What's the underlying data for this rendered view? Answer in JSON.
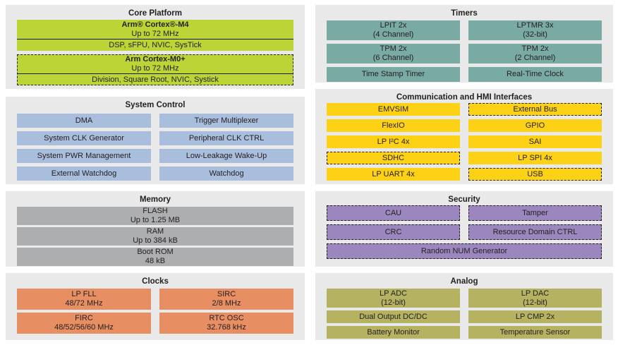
{
  "colors": {
    "panel_bg": "#e9e9ea",
    "green": "#bcd435",
    "blue": "#a9bedd",
    "gray": "#adaeb0",
    "orange": "#e78e63",
    "teal": "#79aaa4",
    "yellow": "#fdd116",
    "purple": "#9b87bd",
    "olive": "#b5b261",
    "text": "#231f20"
  },
  "sections": {
    "core": {
      "title": "Core Platform",
      "blocks": [
        {
          "line1": "Arm® Cortex®-M4",
          "line2": "Up to 72 MHz",
          "features": "DSP, sFPU, NVIC, SysTick"
        },
        {
          "line1": "Arm Cortex-M0+",
          "line2": "Up to 72 MHz",
          "features": "Division, Square Root, NVIC, Systick"
        }
      ]
    },
    "system_control": {
      "title": "System Control",
      "cells": [
        "DMA",
        "Trigger Multiplexer",
        "System CLK Generator",
        "Peripheral CLK CTRL",
        "System PWR Management",
        "Low-Leakage Wake-Up",
        "External Watchdog",
        "Watchdog"
      ]
    },
    "memory": {
      "title": "Memory",
      "cells": [
        {
          "line1": "FLASH",
          "line2": "Up to 1.25 MB"
        },
        {
          "line1": "RAM",
          "line2": "Up to 384 kB"
        },
        {
          "line1": "Boot ROM",
          "line2": "48 kB"
        }
      ]
    },
    "clocks": {
      "title": "Clocks",
      "cells": [
        {
          "line1": "LP FLL",
          "line2": "48/72 MHz"
        },
        {
          "line1": "SIRC",
          "line2": "2/8 MHz"
        },
        {
          "line1": "FIRC",
          "line2": "48/52/56/60 MHz"
        },
        {
          "line1": "RTC OSC",
          "line2": "32.768 kHz"
        }
      ]
    },
    "timers": {
      "title": "Timers",
      "cells": [
        {
          "line1": "LPIT 2x",
          "line2": "(4 Channel)"
        },
        {
          "line1": "LPTMR 3x",
          "line2": "(32-bit)"
        },
        {
          "line1": "TPM 2x",
          "line2": "(6 Channel)"
        },
        {
          "line1": "TPM 2x",
          "line2": "(2 Channel)"
        },
        {
          "line1": "Time Stamp Timer"
        },
        {
          "line1": "Real-Time Clock"
        }
      ]
    },
    "comm": {
      "title": "Communication and HMI Interfaces",
      "cells": [
        "EMVSIM",
        "External Bus",
        "FlexIO",
        "GPIO",
        "LP I²C 4x",
        "SAI",
        "SDHC",
        "LP SPI 4x",
        "LP UART 4x",
        "USB"
      ]
    },
    "security": {
      "title": "Security",
      "cells": [
        "CAU",
        "Tamper",
        "CRC",
        "Resource Domain CTRL",
        "Random NUM Generator"
      ]
    },
    "analog": {
      "title": "Analog",
      "cells": [
        {
          "line1": "LP ADC",
          "line2": "(12-bit)"
        },
        {
          "line1": "LP DAC",
          "line2": "(12-bit)"
        },
        {
          "line1": "Dual Output DC/DC"
        },
        {
          "line1": "LP CMP 2x"
        },
        {
          "line1": "Battery Monitor"
        },
        {
          "line1": "Temperature Sensor"
        }
      ]
    }
  }
}
